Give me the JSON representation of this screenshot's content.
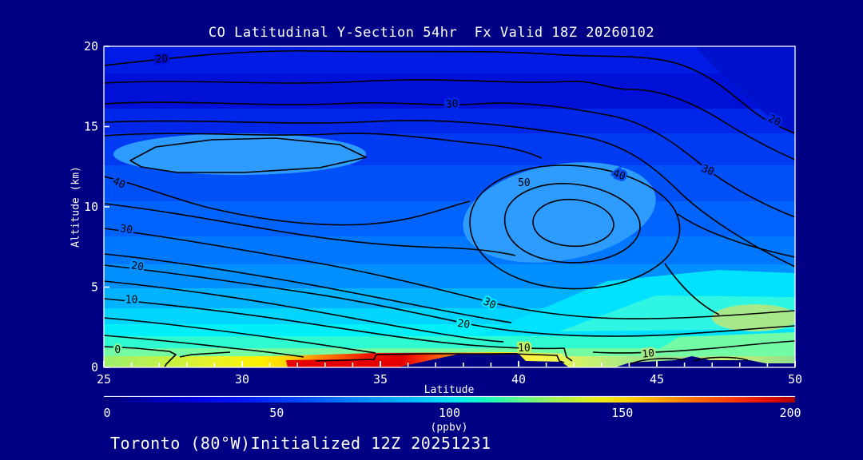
{
  "title": "CO Latitudinal Y-Section 54hr  Fx Valid 18Z 20260102",
  "footer": "Toronto (80°W)Initialized 12Z 20251231",
  "axes": {
    "x": {
      "label": "Latitude",
      "min": 25,
      "max": 50,
      "ticks": [
        25,
        30,
        35,
        40,
        45,
        50
      ],
      "minor_tick_step": 1
    },
    "y": {
      "label": "Altitude (km)",
      "min": 0,
      "max": 20,
      "ticks": [
        0,
        5,
        10,
        15,
        20
      ]
    }
  },
  "colorbar": {
    "min": 0,
    "max": 200,
    "ticks": [
      0,
      50,
      100,
      150,
      200
    ],
    "unit": "(ppbv)"
  },
  "chart_data": {
    "type": "contour",
    "title": "CO Latitudinal Y-Section 54hr  Fx Valid 18Z 20260102",
    "xlabel": "Latitude",
    "ylabel": "Altitude (km)",
    "xlim": [
      25,
      50
    ],
    "ylim": [
      0,
      20
    ],
    "fill_field": "CO (ppbv)",
    "fill_range": [
      0,
      200
    ],
    "contour_levels": [
      0,
      10,
      20,
      30,
      40,
      50
    ],
    "contour_labels": [
      {
        "value": 20,
        "lat": 27.1,
        "alt": 19.2
      },
      {
        "value": 30,
        "lat": 37.6,
        "alt": 16.4
      },
      {
        "value": 20,
        "lat": 49.2,
        "alt": 15.4
      },
      {
        "value": 30,
        "lat": 46.8,
        "alt": 12.3
      },
      {
        "value": 40,
        "lat": 43.6,
        "alt": 12.0
      },
      {
        "value": 50,
        "lat": 40.2,
        "alt": 11.5
      },
      {
        "value": 40,
        "lat": 25.5,
        "alt": 11.5
      },
      {
        "value": 30,
        "lat": 25.8,
        "alt": 8.6
      },
      {
        "value": 20,
        "lat": 26.2,
        "alt": 6.3
      },
      {
        "value": 10,
        "lat": 26.0,
        "alt": 4.2
      },
      {
        "value": 0,
        "lat": 25.5,
        "alt": 1.1
      },
      {
        "value": 30,
        "lat": 38.9,
        "alt": 4.0
      },
      {
        "value": 20,
        "lat": 38.0,
        "alt": 2.7
      },
      {
        "value": 10,
        "lat": 40.2,
        "alt": 1.2
      },
      {
        "value": 10,
        "lat": 44.7,
        "alt": 0.85
      }
    ],
    "features": {
      "closed_max_50_center": {
        "lat": 41.5,
        "alt_km": 10.5
      },
      "closed_high_left": {
        "lat_range": [
          26,
          32
        ],
        "alt_km_range": [
          12,
          14
        ]
      },
      "surface_high_fill_ppbv_150_200": {
        "lat_range": [
          31.5,
          36.5
        ],
        "alt_km_range": [
          0,
          0.8
        ]
      },
      "terrain_masked_surface": {
        "lat_ranges": [
          [
            35.6,
            41.8
          ],
          [
            43.5,
            50
          ]
        ]
      }
    },
    "legend_position": "bottom-colorbar",
    "grid": false
  },
  "colors": {
    "background": "#000084",
    "text": "#ffffff",
    "contour_line": "#000000",
    "colorbar_stops": [
      "#00007A",
      "#0000D8",
      "#0048FF",
      "#00AEFF",
      "#00EEE6",
      "#66F882",
      "#E6EE1E",
      "#FFA000",
      "#FA3A00",
      "#A80000"
    ]
  }
}
